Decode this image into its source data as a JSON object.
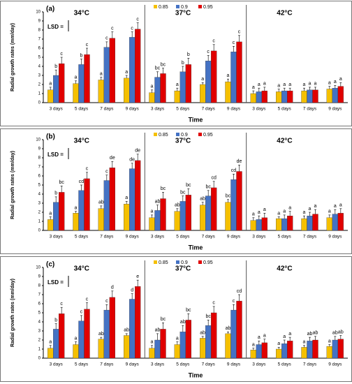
{
  "chart_data": [
    {
      "type": "bar",
      "panel": "(a)",
      "ylabel": "Radial growth rates (mm/day)",
      "xlabel": "Time",
      "annotation": "LSD =",
      "groups": [
        "34°C",
        "37°C",
        "42°C"
      ],
      "categories": [
        "3 days",
        "5 days",
        "7 days",
        "9 days",
        "3 days",
        "5 days",
        "7 days",
        "9 days",
        "3 days",
        "5 days",
        "7 days",
        "9 days"
      ],
      "ylim": [
        0,
        10
      ],
      "yticks": [
        0,
        1,
        2,
        3,
        4,
        5,
        6,
        7,
        8,
        9,
        10
      ],
      "series": [
        {
          "name": "0.85",
          "color": "#f5c000",
          "values": [
            1.4,
            2.1,
            2.5,
            2.7,
            1.1,
            1.3,
            2.0,
            2.3,
            1.0,
            1.2,
            1.3,
            1.5
          ],
          "errors": [
            0.3,
            0.3,
            0.3,
            0.3,
            0.3,
            0.3,
            0.2,
            0.3,
            0.3,
            0.3,
            0.3,
            0.3
          ],
          "letters": [
            "a",
            "a",
            "a",
            "a",
            "a",
            "a",
            "a",
            "a",
            "a",
            "a",
            "a",
            "a"
          ]
        },
        {
          "name": "0.9",
          "color": "#4472c4",
          "values": [
            3.0,
            4.2,
            6.1,
            7.2,
            2.8,
            3.4,
            4.6,
            5.6,
            1.2,
            1.3,
            1.4,
            1.6
          ],
          "errors": [
            0.6,
            0.6,
            0.6,
            0.6,
            0.6,
            0.6,
            0.6,
            0.6,
            0.4,
            0.3,
            0.3,
            0.3
          ],
          "letters": [
            "b",
            "b",
            "c",
            "c",
            "bc",
            "b",
            "c",
            "c",
            "a",
            "a",
            "a",
            "a"
          ]
        },
        {
          "name": "0.95",
          "color": "#e00000",
          "values": [
            4.3,
            5.3,
            7.1,
            8.1,
            3.2,
            4.2,
            5.7,
            6.7,
            1.3,
            1.3,
            1.4,
            1.8
          ],
          "errors": [
            0.7,
            0.7,
            0.7,
            0.7,
            0.6,
            0.7,
            0.7,
            0.7,
            0.4,
            0.3,
            0.3,
            0.4
          ],
          "letters": [
            "c",
            "c",
            "c",
            "c",
            "bc",
            "b",
            "c",
            "c",
            "a",
            "a",
            "a",
            "a"
          ]
        }
      ]
    },
    {
      "type": "bar",
      "panel": "(b)",
      "ylabel": "Radial growth rates (mm/day)",
      "xlabel": "Time",
      "annotation": "LSD =",
      "groups": [
        "34°C",
        "37°C",
        "42°C"
      ],
      "categories": [
        "3 days",
        "5 days",
        "7 days",
        "9 days",
        "3 days",
        "5 days",
        "7 days",
        "9 days",
        "3 days",
        "5 days",
        "7 days",
        "9 days"
      ],
      "ylim": [
        0,
        10
      ],
      "yticks": [
        0,
        1,
        2,
        3,
        4,
        5,
        6,
        7,
        8,
        9,
        10
      ],
      "series": [
        {
          "name": "0.85",
          "color": "#f5c000",
          "values": [
            1.2,
            1.9,
            2.4,
            2.9,
            1.4,
            2.1,
            2.8,
            3.1,
            1.1,
            1.3,
            1.3,
            1.4
          ],
          "errors": [
            0.3,
            0.2,
            0.3,
            0.3,
            0.3,
            0.3,
            0.3,
            0.3,
            0.3,
            0.2,
            0.3,
            0.3
          ],
          "letters": [
            "a",
            "a",
            "ab",
            "a",
            "a",
            "ab",
            "ab",
            "bc",
            "a",
            "a",
            "a",
            "a"
          ]
        },
        {
          "name": "0.9",
          "color": "#4472c4",
          "values": [
            3.1,
            4.4,
            5.5,
            6.8,
            2.2,
            3.2,
            3.8,
            5.6,
            1.2,
            1.3,
            1.6,
            1.8
          ],
          "errors": [
            0.6,
            0.6,
            0.6,
            0.6,
            0.6,
            0.6,
            0.6,
            0.6,
            0.4,
            0.4,
            0.4,
            0.5
          ],
          "letters": [
            "b",
            "cd",
            "c",
            "de",
            "ab",
            "bc",
            "bc",
            "cd",
            "a",
            "a",
            "a",
            "a"
          ]
        },
        {
          "name": "0.95",
          "color": "#e00000",
          "values": [
            4.2,
            5.7,
            6.9,
            7.7,
            3.5,
            3.9,
            4.7,
            6.5,
            1.4,
            1.6,
            1.8,
            1.9
          ],
          "errors": [
            0.7,
            0.7,
            0.7,
            0.7,
            0.7,
            0.7,
            0.7,
            0.7,
            0.5,
            0.5,
            0.5,
            0.5
          ],
          "letters": [
            "bc",
            "c",
            "de",
            "de",
            "bc",
            "bc",
            "cd",
            "de",
            "a",
            "a",
            "a",
            "a"
          ]
        }
      ]
    },
    {
      "type": "bar",
      "panel": "(c)",
      "ylabel": "Radial growth rates (mm/day)",
      "xlabel": "Time",
      "annotation": "LSD =",
      "groups": [
        "34°C",
        "37°C",
        "42°C"
      ],
      "categories": [
        "3 days",
        "5 days",
        "7 days",
        "9 days",
        "3 days",
        "5 days",
        "7 days",
        "9 days",
        "3 days",
        "5 days",
        "7 days",
        "9 days"
      ],
      "ylim": [
        0,
        10
      ],
      "yticks": [
        0,
        1,
        2,
        3,
        4,
        5,
        6,
        7,
        8,
        9,
        10
      ],
      "series": [
        {
          "name": "0.85",
          "color": "#f5c000",
          "values": [
            1.1,
            1.5,
            2.1,
            2.5,
            1.1,
            1.5,
            2.2,
            2.7,
            0.9,
            1.0,
            1.2,
            1.3
          ],
          "errors": [
            0.3,
            0.3,
            0.2,
            0.2,
            0.3,
            0.3,
            0.2,
            0.2,
            0.2,
            0.2,
            0.2,
            0.2
          ],
          "letters": [
            "a",
            "a",
            "ab",
            "ab",
            "a",
            "a",
            "ab",
            "ab",
            "a",
            "a",
            "a",
            "a"
          ]
        },
        {
          "name": "0.9",
          "color": "#4472c4",
          "values": [
            3.2,
            4.1,
            5.3,
            6.5,
            2.0,
            2.9,
            3.6,
            5.3,
            1.5,
            1.6,
            1.9,
            2.0
          ],
          "errors": [
            0.6,
            0.6,
            0.6,
            0.6,
            0.7,
            0.7,
            0.6,
            0.6,
            0.4,
            0.4,
            0.4,
            0.4
          ],
          "letters": [
            "b",
            "c",
            "c",
            "d",
            "ab",
            "ab",
            "bc",
            "c",
            "a",
            "a",
            "ab",
            "ab"
          ]
        },
        {
          "name": "0.95",
          "color": "#e00000",
          "values": [
            4.9,
            5.4,
            6.7,
            7.9,
            3.2,
            4.2,
            5.0,
            6.3,
            1.7,
            1.9,
            2.0,
            2.1
          ],
          "errors": [
            0.7,
            0.7,
            0.7,
            0.7,
            0.7,
            0.7,
            0.7,
            0.7,
            0.4,
            0.4,
            0.4,
            0.4
          ],
          "letters": [
            "c",
            "c",
            "d",
            "e",
            "bc",
            "bc",
            "c",
            "cd",
            "a",
            "a",
            "ab",
            "ab"
          ]
        }
      ]
    }
  ]
}
